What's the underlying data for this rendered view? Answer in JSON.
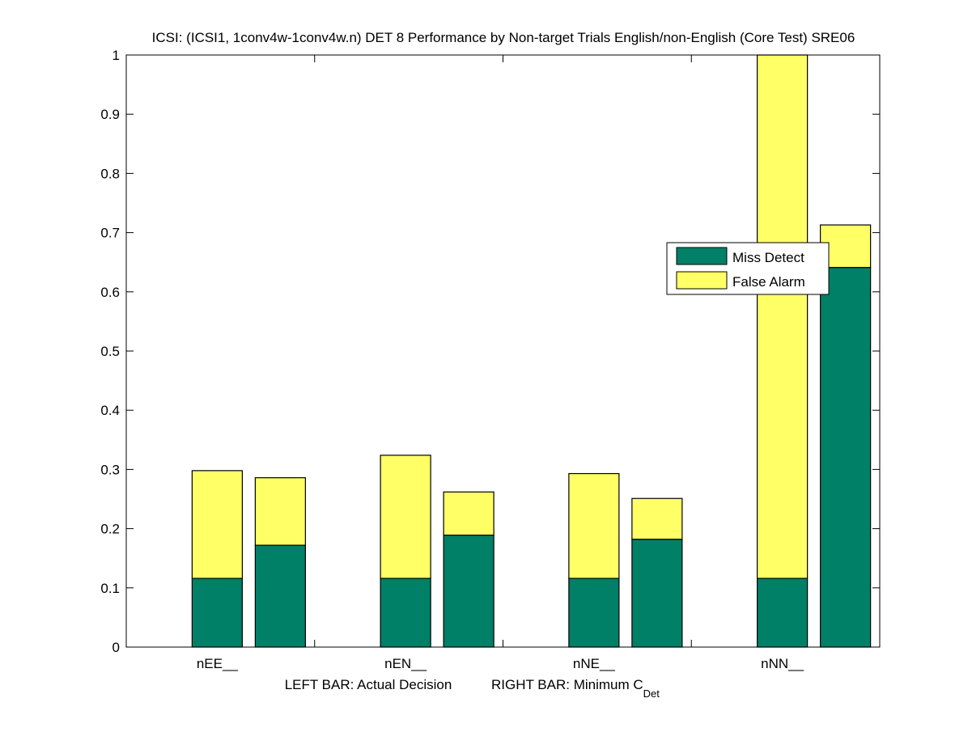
{
  "chart_data": {
    "type": "bar",
    "stacked": true,
    "title": "ICSI: (ICSI1, 1conv4w-1conv4w.n) DET 8 Performance by Non-target Trials English/non-English (Core Test) SRE06",
    "xlabel_left": "LEFT BAR: Actual Decision",
    "xlabel_right_main": "RIGHT BAR: Minimum C",
    "xlabel_right_sub": "Det",
    "ylabel": "",
    "ylim": [
      0,
      1
    ],
    "yticks": [
      0,
      0.1,
      0.2,
      0.3,
      0.4,
      0.5,
      0.6,
      0.7,
      0.8,
      0.9,
      1
    ],
    "ytick_labels": [
      "0",
      "0.1",
      "0.2",
      "0.3",
      "0.4",
      "0.5",
      "0.6",
      "0.7",
      "0.8",
      "0.9",
      "1"
    ],
    "categories": [
      "nEE__",
      "nEN__",
      "nNE__",
      "nNN__"
    ],
    "bar_groups": [
      "Actual Decision",
      "Minimum CDet"
    ],
    "series": [
      {
        "name": "Miss Detect",
        "color": "#008066",
        "actual_decision": [
          0.116,
          0.116,
          0.116,
          0.116
        ],
        "minimum_cdet": [
          0.172,
          0.189,
          0.182,
          0.641
        ]
      },
      {
        "name": "False Alarm",
        "color": "#ffff66",
        "actual_decision": [
          0.182,
          0.208,
          0.177,
          0.884
        ],
        "minimum_cdet": [
          0.114,
          0.073,
          0.069,
          0.072
        ]
      }
    ],
    "totals": {
      "actual_decision": [
        0.298,
        0.324,
        0.293,
        1.0
      ],
      "minimum_cdet": [
        0.286,
        0.262,
        0.251,
        0.713
      ]
    },
    "legend": {
      "entries": [
        "Miss Detect",
        "False Alarm"
      ],
      "placement": "right-middle"
    },
    "grid": false
  }
}
